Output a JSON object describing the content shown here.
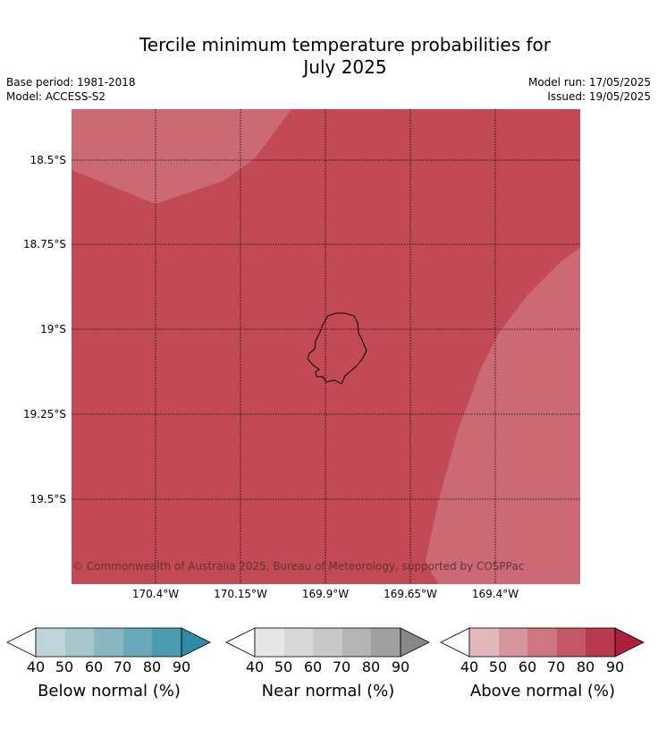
{
  "title_line1": "Tercile minimum temperature probabilities for",
  "title_line2": "July 2025",
  "meta_left": [
    "Base period: 1981-2018",
    "Model: ACCESS-S2"
  ],
  "meta_right": [
    "Model run: 17/05/2025",
    "Issued: 19/05/2025"
  ],
  "y_ticks": [
    "18.5°S",
    "18.75°S",
    "19°S",
    "19.25°S",
    "19.5°S"
  ],
  "x_ticks": [
    "170.4°W",
    "170.15°W",
    "169.9°W",
    "169.65°W",
    "169.4°W"
  ],
  "copyright": "© Commonwealth of Australia 2025, Bureau of Meteorology, supported by COSPPac",
  "colors": {
    "map_main": "#c24a56",
    "map_light": "#cb6a75",
    "below": [
      "#bdd4da",
      "#a6c6cc",
      "#88b6c1",
      "#6aa9b9",
      "#4b9bb0",
      "#2f8aa5"
    ],
    "near": [
      "#e6e6e6",
      "#d8d8d8",
      "#c8c8c8",
      "#b4b4b4",
      "#a0a0a0",
      "#888888"
    ],
    "above": [
      "#e2b8bd",
      "#d6969e",
      "#cf7680",
      "#c45866",
      "#b83a4e",
      "#ad1f3a"
    ]
  },
  "colorbars": [
    {
      "label": "Below normal (%)",
      "ticks": [
        "40",
        "50",
        "60",
        "70",
        "80",
        "90"
      ]
    },
    {
      "label": "Near normal (%)",
      "ticks": [
        "40",
        "50",
        "60",
        "70",
        "80",
        "90"
      ]
    },
    {
      "label": "Above normal (%)",
      "ticks": [
        "40",
        "50",
        "60",
        "70",
        "80",
        "90"
      ]
    }
  ]
}
